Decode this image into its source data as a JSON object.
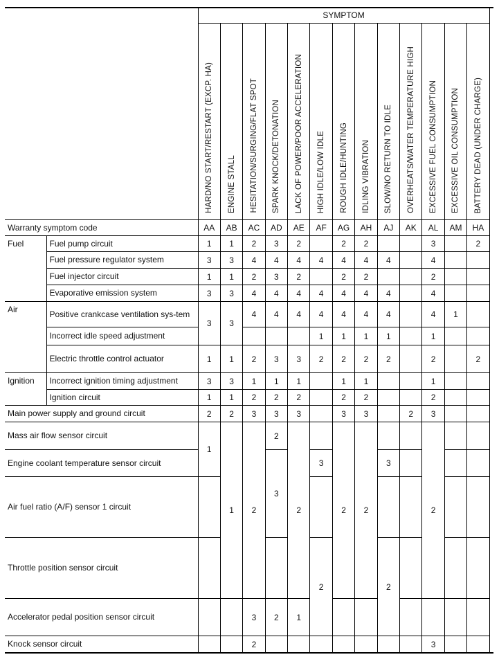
{
  "header": {
    "group_label": "SYMPTOM",
    "symptoms": [
      "HARD/NO START/RESTART (EXCP. HA)",
      "ENGINE STALL",
      "HESITATION/SURGING/FLAT SPOT",
      "SPARK KNOCK/DETONATION",
      "LACK OF POWER/POOR ACCELERATION",
      "HIGH IDLE/LOW IDLE",
      "ROUGH IDLE/HUNTING",
      "IDLING VIBRATION",
      "SLOW/NO RETURN TO IDLE",
      "OVERHEATS/WATER TEMPERATURE HIGH",
      "EXCESSIVE FUEL CONSUMPTION",
      "EXCESSIVE OIL CONSUMPTION",
      "BATTERY DEAD (UNDER CHARGE)"
    ]
  },
  "rows": [
    {
      "category": "Warranty symptom code",
      "cells": [
        "AA",
        "AB",
        "AC",
        "AD",
        "AE",
        "AF",
        "AG",
        "AH",
        "AJ",
        "AK",
        "AL",
        "AM",
        "HA"
      ]
    },
    {
      "category": "Fuel",
      "category_rowspan": 4,
      "item": "Fuel pump circuit",
      "cells": [
        "1",
        "1",
        "2",
        "3",
        "2",
        "",
        "2",
        "2",
        "",
        "",
        "3",
        "",
        "2"
      ]
    },
    {
      "item": "Fuel pressure regulator system",
      "cells": [
        "3",
        "3",
        "4",
        "4",
        "4",
        "4",
        "4",
        "4",
        "4",
        "",
        "4",
        "",
        ""
      ]
    },
    {
      "item": "Fuel injector circuit",
      "cells": [
        "1",
        "1",
        "2",
        "3",
        "2",
        "",
        "2",
        "2",
        "",
        "",
        "2",
        "",
        ""
      ]
    },
    {
      "item": "Evaporative emission system",
      "cells": [
        "3",
        "3",
        "4",
        "4",
        "4",
        "4",
        "4",
        "4",
        "4",
        "",
        "4",
        "",
        ""
      ]
    },
    {
      "category": "Air",
      "category_rowspan": 3,
      "item": "Positive crankcase ventilation sys-tem",
      "cells": [
        {
          "v": "3",
          "rowspan": 2
        },
        {
          "v": "3",
          "rowspan": 2
        },
        "4",
        "4",
        "4",
        "4",
        "4",
        "4",
        "4",
        "",
        "4",
        "1",
        ""
      ]
    },
    {
      "item": "Incorrect idle speed adjustment",
      "cells": [
        null,
        null,
        "",
        "",
        "",
        "1",
        "1",
        "1",
        "1",
        "",
        "1",
        "",
        ""
      ]
    },
    {
      "item": "Electric throttle control actuator",
      "cells": [
        "1",
        "1",
        "2",
        "3",
        "3",
        "2",
        "2",
        "2",
        "2",
        "",
        "2",
        "",
        "2"
      ]
    },
    {
      "category": "Ignition",
      "category_rowspan": 2,
      "item": "Incorrect ignition timing adjustment",
      "cells": [
        "3",
        "3",
        "1",
        "1",
        "1",
        "",
        "1",
        "1",
        "",
        "",
        "1",
        "",
        ""
      ]
    },
    {
      "item": "Ignition circuit",
      "cells": [
        "1",
        "1",
        "2",
        "2",
        "2",
        "",
        "2",
        "2",
        "",
        "",
        "2",
        "",
        ""
      ]
    },
    {
      "category": "Main power supply and ground circuit",
      "cells": [
        "2",
        "2",
        "3",
        "3",
        "3",
        "",
        "3",
        "3",
        "",
        "2",
        "3",
        "",
        ""
      ]
    },
    {
      "category": "Mass air flow sensor circuit",
      "cells": [
        {
          "v": "1",
          "rowspan": 2
        },
        {
          "v": "1",
          "rowspan": 4
        },
        {
          "v": "2",
          "rowspan": 4
        },
        "2",
        {
          "v": "2",
          "rowspan": 4
        },
        "",
        {
          "v": "2",
          "rowspan": 4
        },
        {
          "v": "2",
          "rowspan": 4
        },
        "",
        "",
        {
          "v": "2",
          "rowspan": 4
        },
        "",
        ""
      ]
    },
    {
      "category": "Engine coolant temperature sensor circuit",
      "cells": [
        null,
        null,
        null,
        {
          "v": "3",
          "rowspan": 2
        },
        null,
        "3",
        null,
        null,
        "3",
        "",
        null,
        "",
        ""
      ]
    },
    {
      "category": "Air fuel ratio (A/F) sensor 1 circuit",
      "cells": [
        "",
        null,
        null,
        null,
        null,
        "",
        null,
        null,
        "",
        "",
        null,
        "",
        ""
      ]
    },
    {
      "category": "Throttle position sensor circuit",
      "cells": [
        "",
        null,
        null,
        "",
        null,
        {
          "v": "2",
          "rowspan": 2
        },
        null,
        null,
        {
          "v": "2",
          "rowspan": 2
        },
        "",
        null,
        "",
        ""
      ]
    },
    {
      "category": "Accelerator pedal position sensor circuit",
      "cells": [
        "",
        "",
        "3",
        "2",
        "1",
        null,
        "",
        "",
        null,
        "",
        "",
        "",
        ""
      ]
    },
    {
      "category": "Knock sensor circuit",
      "cells": [
        "",
        "",
        "2",
        "",
        "",
        "",
        "",
        "",
        "",
        "",
        "3",
        "",
        ""
      ]
    }
  ]
}
